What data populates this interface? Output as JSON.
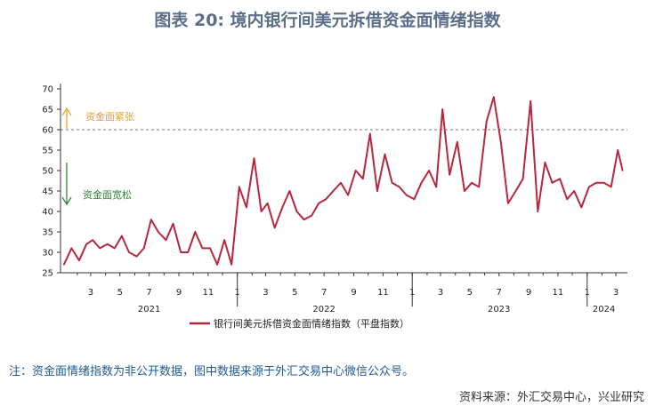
{
  "title": "图表 20: 境内银行间美元拆借资金面情绪指数",
  "footnote": "注：资金面情绪指数为非公开数据，图中数据来源于外汇交易中心微信公众号。",
  "source": "资料来源：外汇交易中心，兴业研究",
  "colors": {
    "line": "#b5283f",
    "tight": "#e6a21e",
    "loose": "#2e7d32",
    "ref": "#777777",
    "title": "#5b6f8a",
    "footnote": "#1f5a96"
  },
  "chart_data": {
    "type": "line",
    "title": "",
    "xlabel": "",
    "ylabel": "",
    "ylim": [
      25,
      70
    ],
    "yticks": [
      25,
      30,
      35,
      40,
      45,
      50,
      55,
      60,
      65,
      70
    ],
    "x_month_ticks": [
      "3",
      "5",
      "7",
      "9",
      "11",
      "1",
      "3",
      "5",
      "7",
      "9",
      "11",
      "1",
      "3",
      "5",
      "7",
      "9",
      "11",
      "1",
      "3"
    ],
    "year_labels": [
      "2021",
      "2022",
      "2023",
      "2024"
    ],
    "reference_line": {
      "y": 60,
      "style": "dashed"
    },
    "annotations": {
      "tight": "资金面紧张",
      "loose": "资金面宽松"
    },
    "series": [
      {
        "name": "银行间美元拆借资金面情绪指数（平盘指数）",
        "x": [
          "2021-01-04",
          "2021-01-20",
          "2021-02-05",
          "2021-02-20",
          "2021-03-05",
          "2021-03-20",
          "2021-04-05",
          "2021-04-20",
          "2021-05-05",
          "2021-05-20",
          "2021-06-05",
          "2021-06-20",
          "2021-07-05",
          "2021-07-20",
          "2021-08-05",
          "2021-08-20",
          "2021-09-05",
          "2021-09-20",
          "2021-10-05",
          "2021-10-20",
          "2021-11-05",
          "2021-11-20",
          "2021-12-05",
          "2021-12-20",
          "2022-01-05",
          "2022-01-20",
          "2022-02-05",
          "2022-02-20",
          "2022-03-05",
          "2022-03-20",
          "2022-04-05",
          "2022-04-20",
          "2022-05-05",
          "2022-05-20",
          "2022-06-05",
          "2022-06-20",
          "2022-07-05",
          "2022-07-20",
          "2022-08-05",
          "2022-08-20",
          "2022-09-05",
          "2022-09-20",
          "2022-10-05",
          "2022-10-20",
          "2022-11-05",
          "2022-11-20",
          "2022-12-05",
          "2022-12-20",
          "2023-01-05",
          "2023-01-20",
          "2023-02-05",
          "2023-02-20",
          "2023-03-05",
          "2023-03-20",
          "2023-04-05",
          "2023-04-20",
          "2023-05-05",
          "2023-05-20",
          "2023-06-05",
          "2023-06-20",
          "2023-07-05",
          "2023-07-20",
          "2023-08-05",
          "2023-08-20",
          "2023-09-05",
          "2023-09-20",
          "2023-10-05",
          "2023-10-20",
          "2023-11-05",
          "2023-11-20",
          "2023-12-05",
          "2023-12-20",
          "2024-01-05",
          "2024-01-20",
          "2024-02-05",
          "2024-02-20",
          "2024-03-05",
          "2024-03-15"
        ],
        "values": [
          27,
          31,
          28,
          32,
          33,
          31,
          32,
          31,
          34,
          30,
          29,
          31,
          38,
          35,
          33,
          37,
          30,
          30,
          35,
          31,
          31,
          27,
          33,
          27,
          46,
          41,
          53,
          40,
          42,
          36,
          41,
          45,
          40,
          38,
          39,
          42,
          43,
          45,
          47,
          44,
          50,
          48,
          59,
          45,
          54,
          47,
          46,
          44,
          43,
          47,
          50,
          46,
          65,
          49,
          57,
          45,
          47,
          46,
          62,
          68,
          57,
          42,
          45,
          48,
          67,
          40,
          52,
          47,
          48,
          43,
          45,
          41,
          46,
          47,
          47,
          46,
          55,
          50
        ]
      }
    ]
  }
}
